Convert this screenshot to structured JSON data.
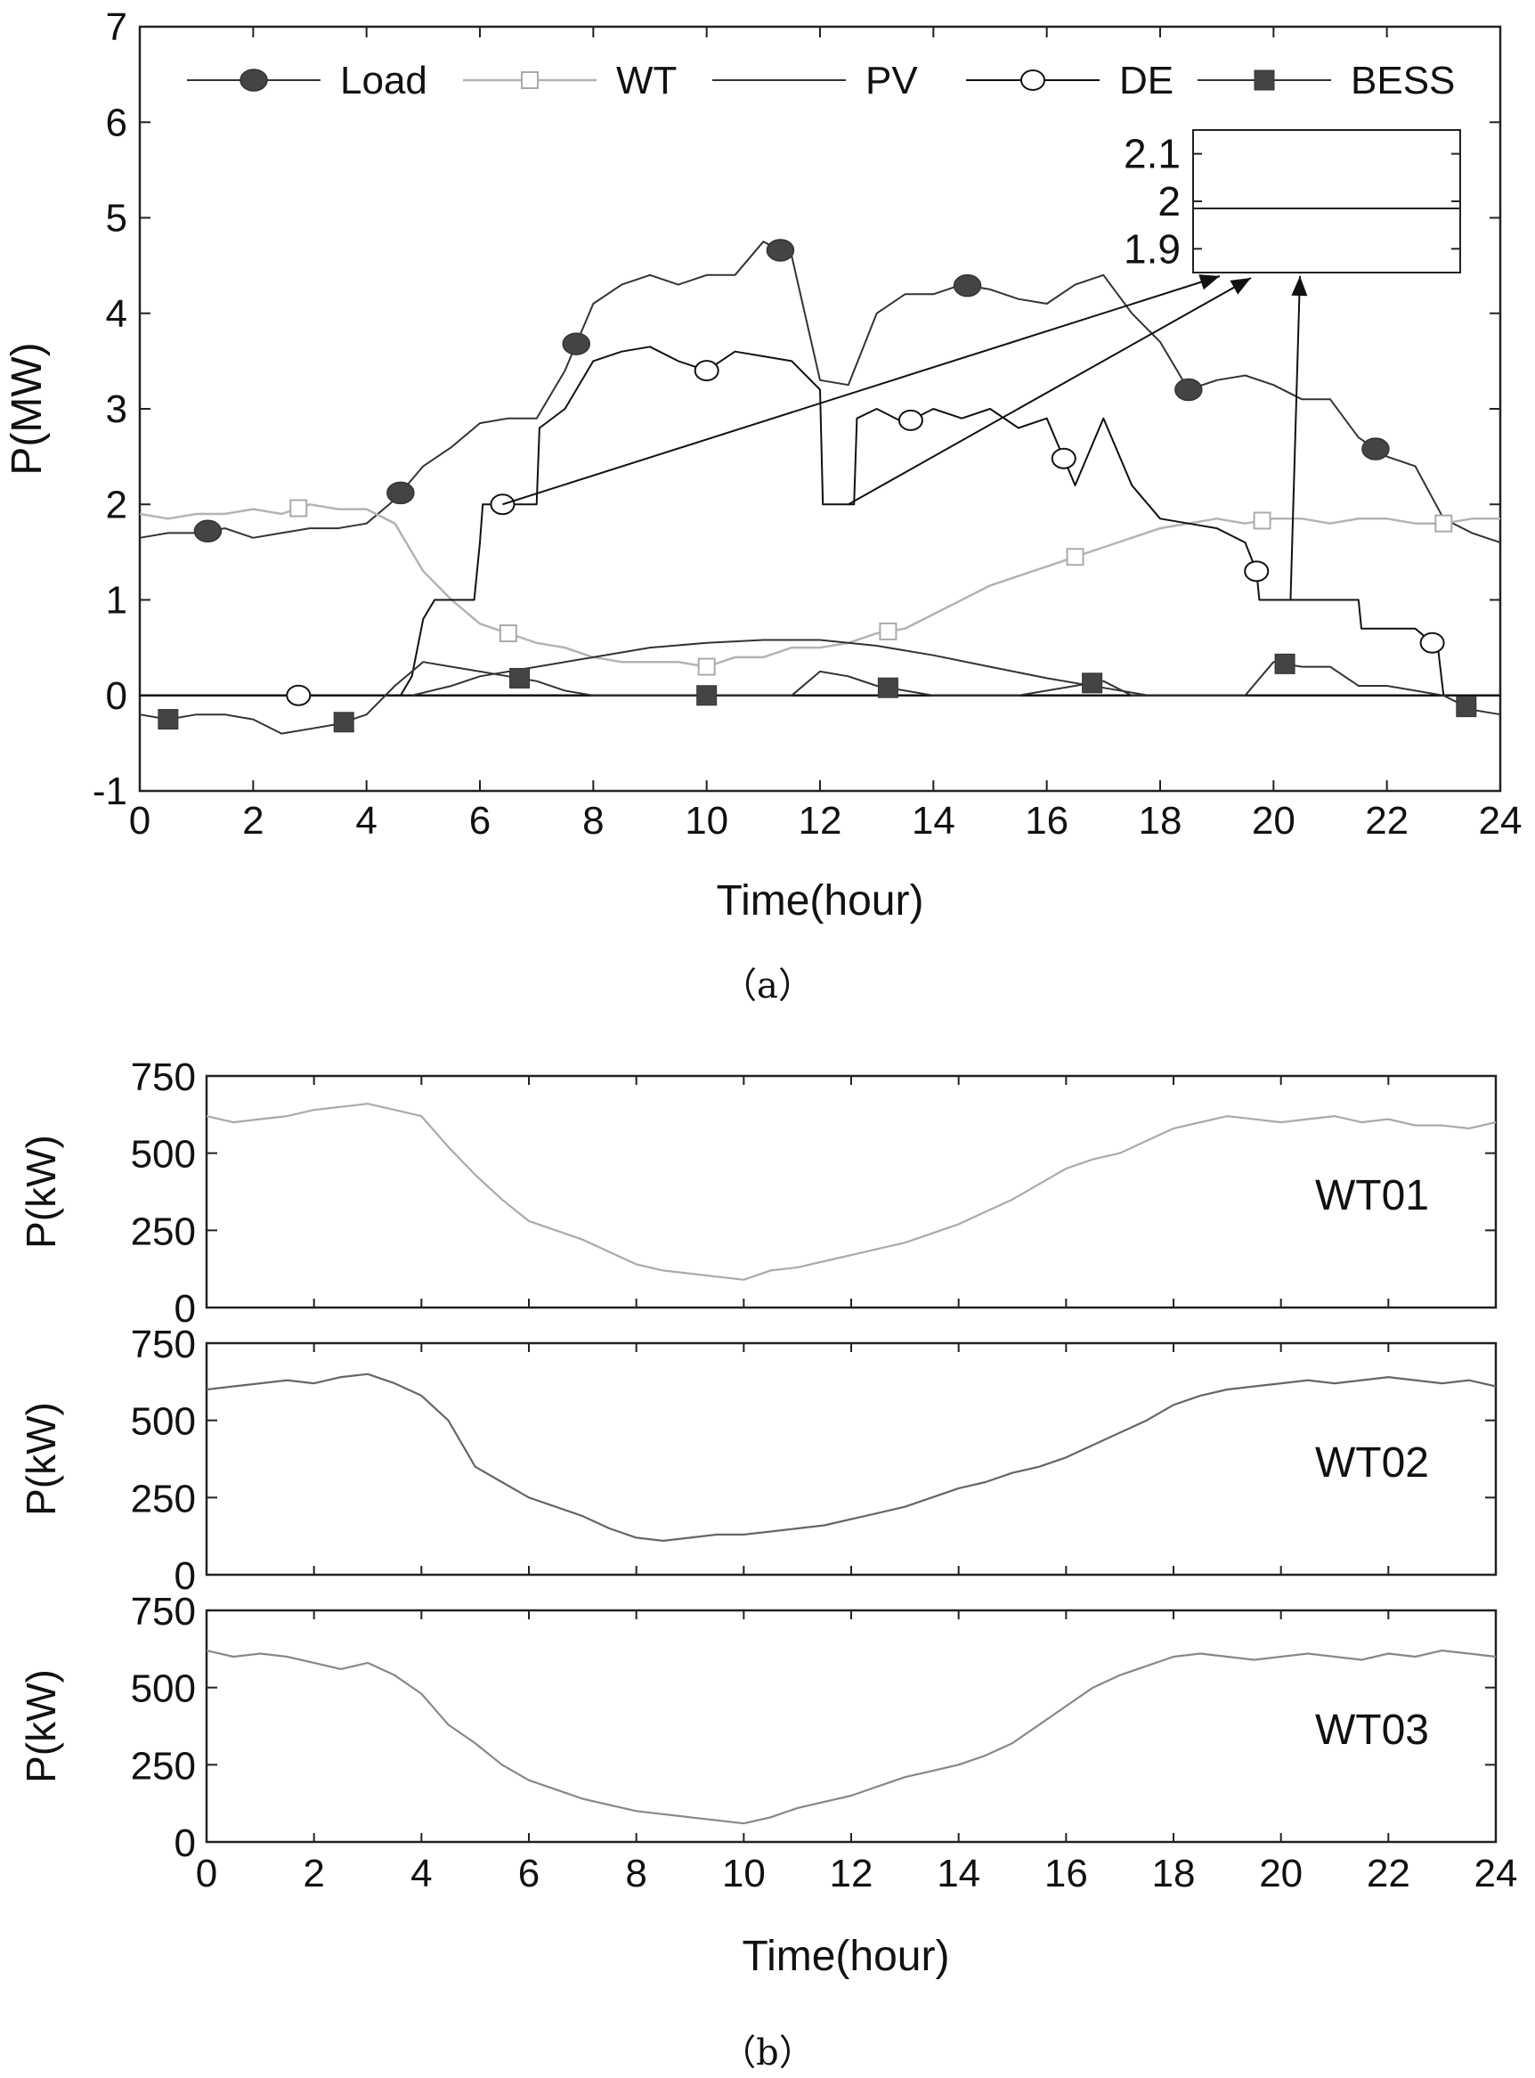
{
  "chart_data": [
    {
      "type": "line",
      "panel_label": "（a）",
      "xlabel": "Time(hour)",
      "ylabel": "P(MW)",
      "xlim": [
        0,
        24
      ],
      "ylim": [
        -1,
        7
      ],
      "xticks": [
        0,
        2,
        4,
        6,
        8,
        10,
        12,
        14,
        16,
        18,
        20,
        22,
        24
      ],
      "yticks": [
        -1,
        0,
        1,
        2,
        3,
        4,
        5,
        6,
        7
      ],
      "legend_position": "top",
      "legend": [
        "Load",
        "WT",
        "PV",
        "DE",
        "BESS"
      ],
      "series": [
        {
          "name": "Load",
          "color": "#333333",
          "marker": "filled-circle",
          "x": [
            0,
            0.5,
            1,
            1.5,
            2,
            2.5,
            3,
            3.5,
            4,
            4.5,
            5,
            5.5,
            6,
            6.5,
            7,
            7.5,
            8,
            8.5,
            9,
            9.5,
            10,
            10.5,
            11,
            11.5,
            12,
            12.5,
            13,
            13.5,
            14,
            14.5,
            15,
            15.5,
            16,
            16.5,
            17,
            17.5,
            18,
            18.5,
            19,
            19.5,
            20,
            20.5,
            21,
            21.5,
            22,
            22.5,
            23,
            23.5,
            24
          ],
          "y": [
            1.65,
            1.7,
            1.7,
            1.75,
            1.65,
            1.7,
            1.75,
            1.75,
            1.8,
            2.05,
            2.4,
            2.6,
            2.85,
            2.9,
            2.9,
            3.4,
            4.1,
            4.3,
            4.4,
            4.3,
            4.4,
            4.4,
            4.75,
            4.6,
            3.3,
            3.25,
            4.0,
            4.2,
            4.2,
            4.3,
            4.25,
            4.15,
            4.1,
            4.3,
            4.4,
            4.0,
            3.7,
            3.2,
            3.3,
            3.35,
            3.25,
            3.1,
            3.1,
            2.7,
            2.5,
            2.4,
            1.85,
            1.7,
            1.6
          ],
          "marker_x": [
            1.2,
            4.6,
            7.7,
            11.3,
            14.6,
            18.5,
            21.8
          ]
        },
        {
          "name": "WT",
          "color": "#b3b3b3",
          "marker": "open-square",
          "x": [
            0,
            0.5,
            1,
            1.5,
            2,
            2.5,
            3,
            3.5,
            4,
            4.5,
            5,
            5.5,
            6,
            6.5,
            7,
            7.5,
            8,
            8.5,
            9,
            9.5,
            10,
            10.5,
            11,
            11.5,
            12,
            12.5,
            13,
            13.5,
            14,
            14.5,
            15,
            15.5,
            16,
            16.5,
            17,
            17.5,
            18,
            18.5,
            19,
            19.5,
            20,
            20.5,
            21,
            21.5,
            22,
            22.5,
            23,
            23.5,
            24
          ],
          "y": [
            1.9,
            1.85,
            1.9,
            1.9,
            1.95,
            1.9,
            2.0,
            1.95,
            1.95,
            1.8,
            1.3,
            1.0,
            0.75,
            0.65,
            0.55,
            0.5,
            0.4,
            0.35,
            0.35,
            0.35,
            0.3,
            0.4,
            0.4,
            0.5,
            0.5,
            0.55,
            0.65,
            0.7,
            0.85,
            1.0,
            1.15,
            1.25,
            1.35,
            1.45,
            1.55,
            1.65,
            1.75,
            1.8,
            1.85,
            1.8,
            1.85,
            1.85,
            1.8,
            1.85,
            1.85,
            1.8,
            1.8,
            1.85,
            1.85
          ],
          "marker_x": [
            2.8,
            6.5,
            10.0,
            13.2,
            16.5,
            19.8,
            23.0
          ]
        },
        {
          "name": "PV",
          "color": "#333333",
          "marker": "none",
          "x": [
            4.8,
            5.5,
            6,
            7,
            8,
            9,
            10,
            11,
            12,
            13,
            14,
            15,
            16,
            17,
            17.8
          ],
          "y": [
            0,
            0.1,
            0.2,
            0.3,
            0.4,
            0.5,
            0.55,
            0.58,
            0.58,
            0.52,
            0.42,
            0.3,
            0.18,
            0.08,
            0
          ]
        },
        {
          "name": "DE",
          "color": "#111111",
          "marker": "open-circle",
          "x": [
            0,
            4.6,
            4.8,
            5.0,
            5.2,
            5.9,
            6.0,
            6.05,
            7.0,
            7.05,
            7.5,
            8,
            8.5,
            9,
            9.5,
            10,
            10.5,
            11,
            11.5,
            12.0,
            12.05,
            12.6,
            12.65,
            13,
            13.5,
            14,
            14.5,
            15,
            15.5,
            16,
            16.5,
            17,
            17.5,
            18,
            18.5,
            19,
            19.5,
            19.7,
            19.75,
            21.5,
            21.55,
            22.5,
            22.9,
            23.0,
            24
          ],
          "y": [
            0,
            0,
            0.2,
            0.8,
            1.0,
            1.0,
            1.6,
            2.0,
            2.0,
            2.8,
            3.0,
            3.5,
            3.6,
            3.65,
            3.5,
            3.4,
            3.6,
            3.55,
            3.5,
            3.2,
            2.0,
            2.0,
            2.9,
            3.0,
            2.85,
            3.0,
            2.9,
            3.0,
            2.8,
            2.9,
            2.2,
            2.9,
            2.2,
            1.85,
            1.8,
            1.75,
            1.6,
            1.3,
            1.0,
            1.0,
            0.7,
            0.7,
            0.5,
            0.0,
            0
          ],
          "marker_x": [
            2.8,
            6.4,
            10.0,
            13.6,
            16.3,
            19.7,
            22.8
          ]
        },
        {
          "name": "BESS",
          "color": "#333333",
          "marker": "filled-square",
          "x": [
            0,
            0.5,
            1,
            1.5,
            2,
            2.5,
            3,
            3.5,
            4,
            4.5,
            5,
            5.5,
            6,
            6.5,
            7,
            7.5,
            8,
            8.5,
            9,
            9.5,
            10,
            10.5,
            11,
            11.5,
            12,
            12.5,
            13,
            13.5,
            14,
            14.5,
            15,
            15.5,
            16,
            16.5,
            17,
            17.5,
            18,
            18.5,
            19,
            19.5,
            20,
            20.5,
            21,
            21.5,
            22,
            22.5,
            23,
            23.5,
            24
          ],
          "y": [
            -0.2,
            -0.25,
            -0.2,
            -0.2,
            -0.25,
            -0.4,
            -0.35,
            -0.3,
            -0.2,
            0.1,
            0.35,
            0.3,
            0.25,
            0.2,
            0.15,
            0.05,
            0.0,
            0.0,
            0.0,
            0.0,
            0.0,
            0.0,
            0.0,
            0.0,
            0.25,
            0.2,
            0.1,
            0.05,
            0.0,
            0.0,
            0.0,
            0.0,
            0.05,
            0.1,
            0.15,
            0.0,
            0.0,
            0.0,
            0.0,
            0.0,
            0.35,
            0.3,
            0.3,
            0.1,
            0.1,
            0.05,
            0.0,
            -0.15,
            -0.2
          ],
          "marker_x": [
            0.5,
            3.6,
            6.7,
            10.0,
            13.2,
            16.8,
            20.2,
            23.4
          ]
        }
      ],
      "inset": {
        "yticks": [
          1.9,
          2,
          2.1
        ],
        "ytick_labels": [
          "1.9",
          "2",
          "2.1"
        ],
        "ylim": [
          1.85,
          2.15
        ],
        "value": 2,
        "arrows_from": [
          [
            6.4,
            2.0
          ],
          [
            12.5,
            2.0
          ],
          [
            20.3,
            1.0
          ]
        ]
      }
    },
    {
      "type": "line",
      "panel_label": "（b）",
      "xlabel": "Time(hour)",
      "ylabel": "P(kW)",
      "xlim": [
        0,
        24
      ],
      "ylim": [
        0,
        750
      ],
      "xticks": [
        0,
        2,
        4,
        6,
        8,
        10,
        12,
        14,
        16,
        18,
        20,
        22,
        24
      ],
      "yticks": [
        0,
        250,
        500,
        750
      ],
      "panels": [
        {
          "name": "WT01",
          "color": "#aaaaaa",
          "x": [
            0,
            0.5,
            1,
            1.5,
            2,
            2.5,
            3,
            3.5,
            4,
            4.5,
            5,
            5.5,
            6,
            6.5,
            7,
            7.5,
            8,
            8.5,
            9,
            9.5,
            10,
            10.5,
            11,
            11.5,
            12,
            12.5,
            13,
            13.5,
            14,
            14.5,
            15,
            15.5,
            16,
            16.5,
            17,
            17.5,
            18,
            18.5,
            19,
            19.5,
            20,
            20.5,
            21,
            21.5,
            22,
            22.5,
            23,
            23.5,
            24
          ],
          "y": [
            620,
            600,
            610,
            620,
            640,
            650,
            660,
            640,
            620,
            520,
            430,
            350,
            280,
            250,
            220,
            180,
            140,
            120,
            110,
            100,
            90,
            120,
            130,
            150,
            170,
            190,
            210,
            240,
            270,
            310,
            350,
            400,
            450,
            480,
            500,
            540,
            580,
            600,
            620,
            610,
            600,
            610,
            620,
            600,
            610,
            590,
            590,
            580,
            600
          ]
        },
        {
          "name": "WT02",
          "color": "#666666",
          "x": [
            0,
            0.5,
            1,
            1.5,
            2,
            2.5,
            3,
            3.5,
            4,
            4.5,
            5,
            5.5,
            6,
            6.5,
            7,
            7.5,
            8,
            8.5,
            9,
            9.5,
            10,
            10.5,
            11,
            11.5,
            12,
            12.5,
            13,
            13.5,
            14,
            14.5,
            15,
            15.5,
            16,
            16.5,
            17,
            17.5,
            18,
            18.5,
            19,
            19.5,
            20,
            20.5,
            21,
            21.5,
            22,
            22.5,
            23,
            23.5,
            24
          ],
          "y": [
            600,
            610,
            620,
            630,
            620,
            640,
            650,
            620,
            580,
            500,
            350,
            300,
            250,
            220,
            190,
            150,
            120,
            110,
            120,
            130,
            130,
            140,
            150,
            160,
            180,
            200,
            220,
            250,
            280,
            300,
            330,
            350,
            380,
            420,
            460,
            500,
            550,
            580,
            600,
            610,
            620,
            630,
            620,
            630,
            640,
            630,
            620,
            630,
            610
          ]
        },
        {
          "name": "WT03",
          "color": "#888888",
          "x": [
            0,
            0.5,
            1,
            1.5,
            2,
            2.5,
            3,
            3.5,
            4,
            4.5,
            5,
            5.5,
            6,
            6.5,
            7,
            7.5,
            8,
            8.5,
            9,
            9.5,
            10,
            10.5,
            11,
            11.5,
            12,
            12.5,
            13,
            13.5,
            14,
            14.5,
            15,
            15.5,
            16,
            16.5,
            17,
            17.5,
            18,
            18.5,
            19,
            19.5,
            20,
            20.5,
            21,
            21.5,
            22,
            22.5,
            23,
            23.5,
            24
          ],
          "y": [
            620,
            600,
            610,
            600,
            580,
            560,
            580,
            540,
            480,
            380,
            320,
            250,
            200,
            170,
            140,
            120,
            100,
            90,
            80,
            70,
            60,
            80,
            110,
            130,
            150,
            180,
            210,
            230,
            250,
            280,
            320,
            380,
            440,
            500,
            540,
            570,
            600,
            610,
            600,
            590,
            600,
            610,
            600,
            590,
            610,
            600,
            620,
            610,
            600
          ]
        }
      ]
    }
  ]
}
